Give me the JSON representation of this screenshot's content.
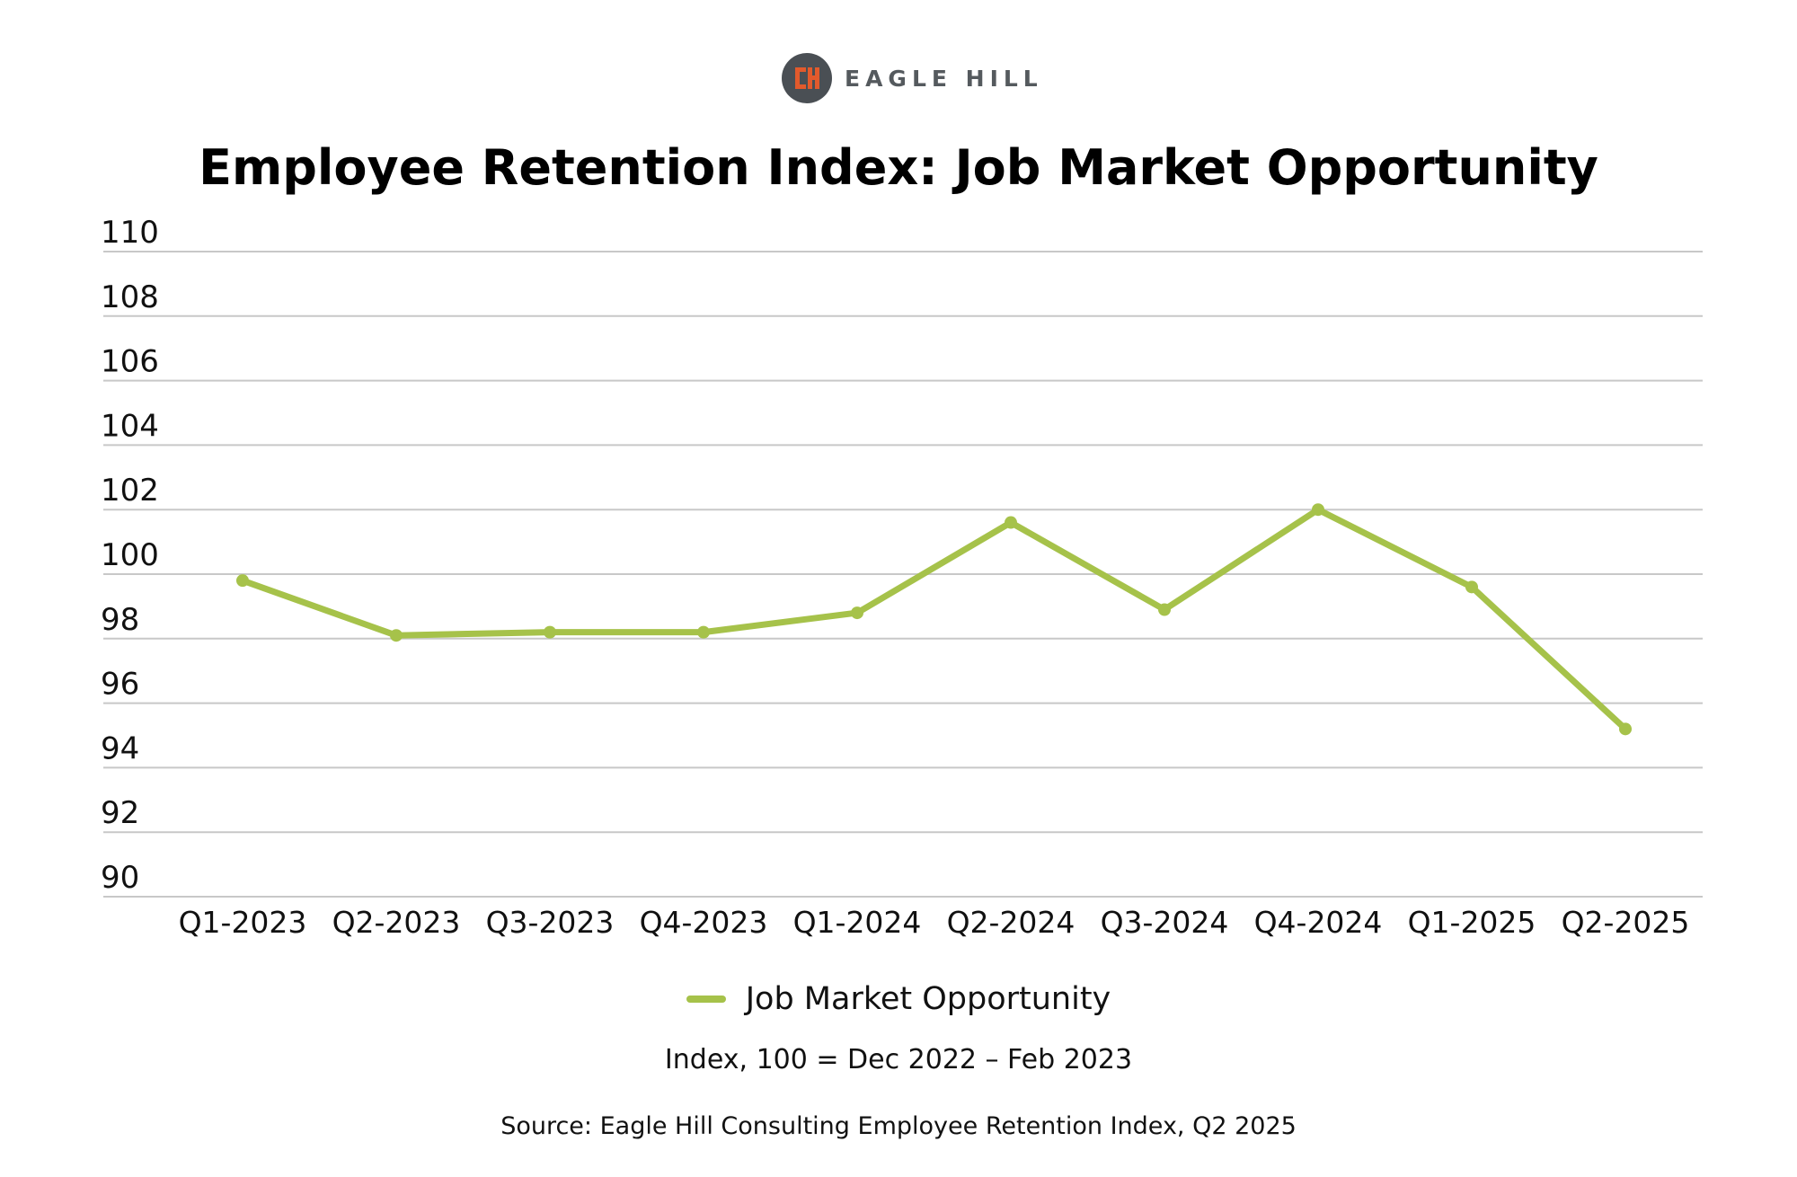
{
  "brand": {
    "name": "EAGLE HILL",
    "logo_icon": "eagle-hill-logo-icon",
    "logo_circle_color": "#4a4f54",
    "logo_accent_color": "#e25a2c"
  },
  "colors": {
    "series": "#a6c24a",
    "grid": "#c8c8c8",
    "text": "#111111"
  },
  "chart_data": {
    "type": "line",
    "title": "Employee Retention Index: Job Market Opportunity",
    "subtitle": "",
    "xlabel": "",
    "ylabel": "",
    "categories": [
      "Q1-2023",
      "Q2-2023",
      "Q3-2023",
      "Q4-2023",
      "Q1-2024",
      "Q2-2024",
      "Q3-2024",
      "Q4-2024",
      "Q1-2025",
      "Q2-2025"
    ],
    "series": [
      {
        "name": "Job Market Opportunity",
        "values": [
          99.8,
          98.1,
          98.2,
          98.2,
          98.8,
          101.6,
          98.9,
          102.0,
          99.6,
          95.2
        ]
      }
    ],
    "ylim": [
      90,
      110
    ],
    "yticks": [
      110,
      108,
      106,
      104,
      102,
      100,
      98,
      96,
      94,
      92,
      90
    ],
    "grid": true,
    "legend_position": "bottom-center",
    "markers": true
  },
  "footer": {
    "note": "Index, 100 = Dec 2022 – Feb 2023",
    "source": "Source: Eagle Hill Consulting Employee Retention Index, Q2 2025"
  }
}
